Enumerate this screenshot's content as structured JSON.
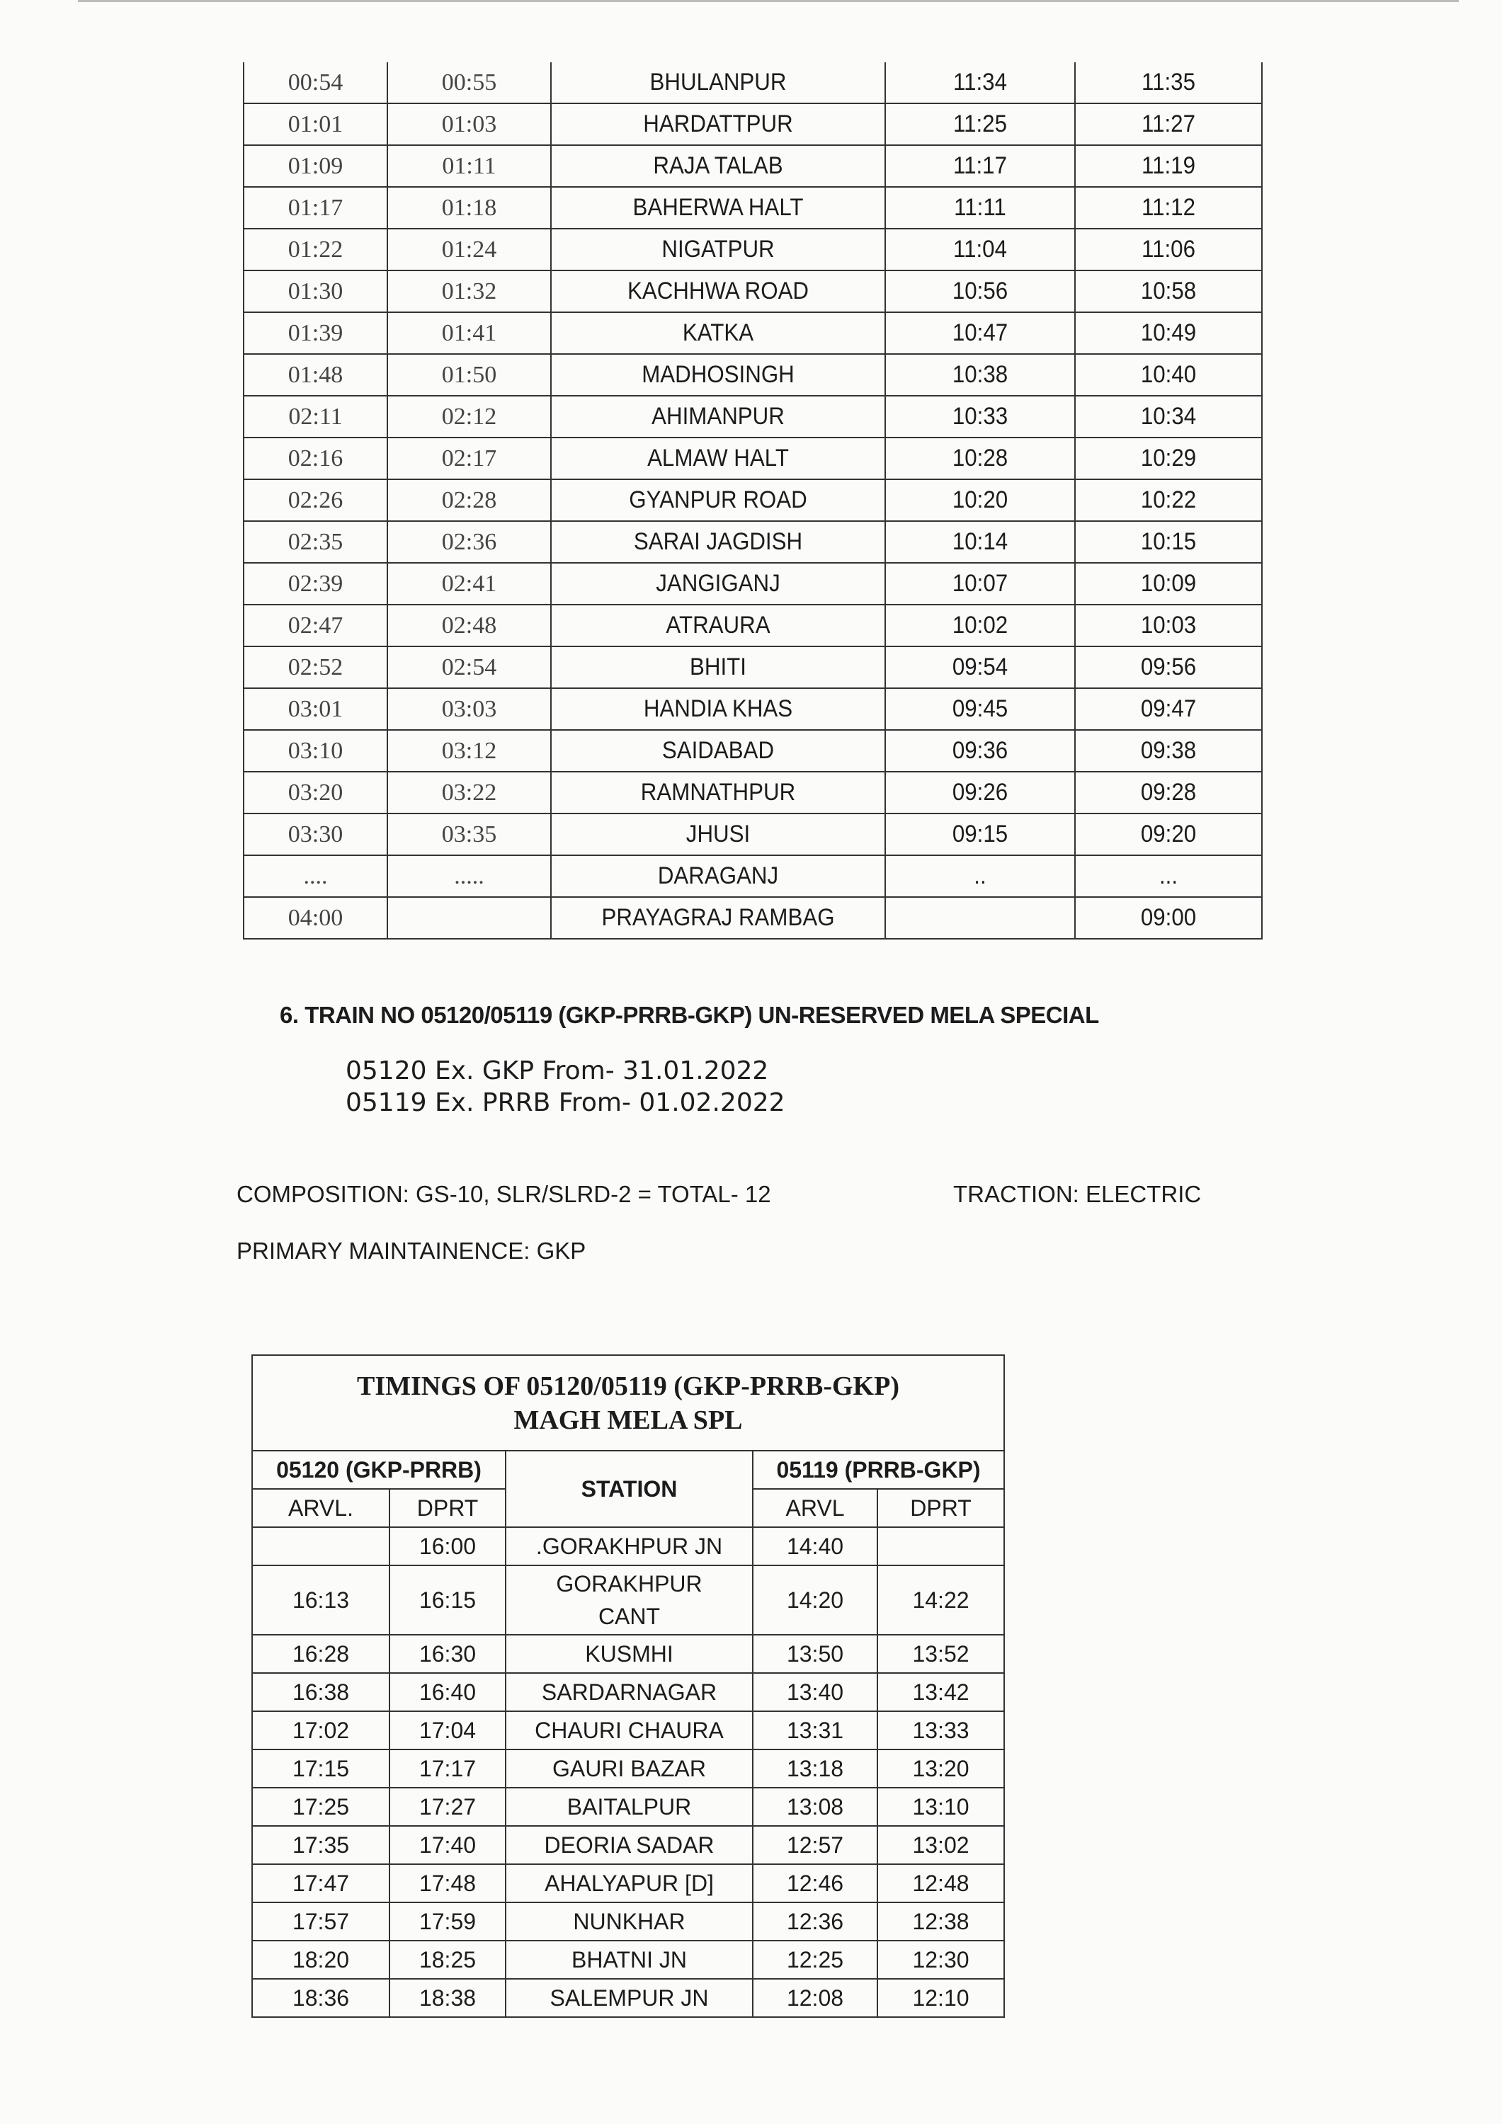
{
  "table1": {
    "rows": [
      [
        "00:54",
        "00:55",
        "BHULANPUR",
        "11:34",
        "11:35"
      ],
      [
        "01:01",
        "01:03",
        "HARDATTPUR",
        "11:25",
        "11:27"
      ],
      [
        "01:09",
        "01:11",
        "RAJA TALAB",
        "11:17",
        "11:19"
      ],
      [
        "01:17",
        "01:18",
        "BAHERWA HALT",
        "11:11",
        "11:12"
      ],
      [
        "01:22",
        "01:24",
        "NIGATPUR",
        "11:04",
        "11:06"
      ],
      [
        "01:30",
        "01:32",
        "KACHHWA ROAD",
        "10:56",
        "10:58"
      ],
      [
        "01:39",
        "01:41",
        "KATKA",
        "10:47",
        "10:49"
      ],
      [
        "01:48",
        "01:50",
        "MADHOSINGH",
        "10:38",
        "10:40"
      ],
      [
        "02:11",
        "02:12",
        "AHIMANPUR",
        "10:33",
        "10:34"
      ],
      [
        "02:16",
        "02:17",
        "ALMAW HALT",
        "10:28",
        "10:29"
      ],
      [
        "02:26",
        "02:28",
        "GYANPUR ROAD",
        "10:20",
        "10:22"
      ],
      [
        "02:35",
        "02:36",
        "SARAI JAGDISH",
        "10:14",
        "10:15"
      ],
      [
        "02:39",
        "02:41",
        "JANGIGANJ",
        "10:07",
        "10:09"
      ],
      [
        "02:47",
        "02:48",
        "ATRAURA",
        "10:02",
        "10:03"
      ],
      [
        "02:52",
        "02:54",
        "BHITI",
        "09:54",
        "09:56"
      ],
      [
        "03:01",
        "03:03",
        "HANDIA KHAS",
        "09:45",
        "09:47"
      ],
      [
        "03:10",
        "03:12",
        "SAIDABAD",
        "09:36",
        "09:38"
      ],
      [
        "03:20",
        "03:22",
        "RAMNATHPUR",
        "09:26",
        "09:28"
      ],
      [
        "03:30",
        "03:35",
        "JHUSI",
        "09:15",
        "09:20"
      ],
      [
        "....",
        ".....",
        "DARAGANJ",
        "..",
        "..."
      ],
      [
        "04:00",
        "",
        "PRAYAGRAJ RAMBAG",
        "",
        "09:00"
      ]
    ]
  },
  "section6": {
    "heading": "6.   TRAIN NO 05120/05119 (GKP-PRRB-GKP) UN-RESERVED  MELA SPECIAL",
    "from_05120": "05120 Ex. GKP From- 31.01.2022",
    "from_05119": "05119 Ex. PRRB From- 01.02.2022",
    "composition": "COMPOSITION: GS-10, SLR/SLRD-2 = TOTAL- 12",
    "traction": "TRACTION: ELECTRIC",
    "maintenance": "PRIMARY MAINTAINENCE: GKP"
  },
  "table2": {
    "title_line1": "TIMINGS OF 05120/05119 (GKP-PRRB-GKP)",
    "title_line2": "MAGH MELA SPL",
    "group_left": "05120 (GKP-PRRB)",
    "station_header": "STATION",
    "group_right": "05119 (PRRB-GKP)",
    "arvl_left": "ARVL.",
    "dprt_left": "DPRT",
    "arvl_right": "ARVL",
    "dprt_right": "DPRT",
    "rows": [
      [
        "",
        "16:00",
        ".GORAKHPUR JN",
        "14:40",
        ""
      ],
      [
        "16:13",
        "16:15",
        "GORAKHPUR CANT",
        "14:20",
        "14:22"
      ],
      [
        "16:28",
        "16:30",
        "KUSMHI",
        "13:50",
        "13:52"
      ],
      [
        "16:38",
        "16:40",
        "SARDARNAGAR",
        "13:40",
        "13:42"
      ],
      [
        "17:02",
        "17:04",
        "CHAURI CHAURA",
        "13:31",
        "13:33"
      ],
      [
        "17:15",
        "17:17",
        "GAURI BAZAR",
        "13:18",
        "13:20"
      ],
      [
        "17:25",
        "17:27",
        "BAITALPUR",
        "13:08",
        "13:10"
      ],
      [
        "17:35",
        "17:40",
        "DEORIA SADAR",
        "12:57",
        "13:02"
      ],
      [
        "17:47",
        "17:48",
        "AHALYAPUR [D]",
        "12:46",
        "12:48"
      ],
      [
        "17:57",
        "17:59",
        "NUNKHAR",
        "12:36",
        "12:38"
      ],
      [
        "18:20",
        "18:25",
        "BHATNI JN",
        "12:25",
        "12:30"
      ],
      [
        "18:36",
        "18:38",
        "SALEMPUR JN",
        "12:08",
        "12:10"
      ]
    ]
  }
}
